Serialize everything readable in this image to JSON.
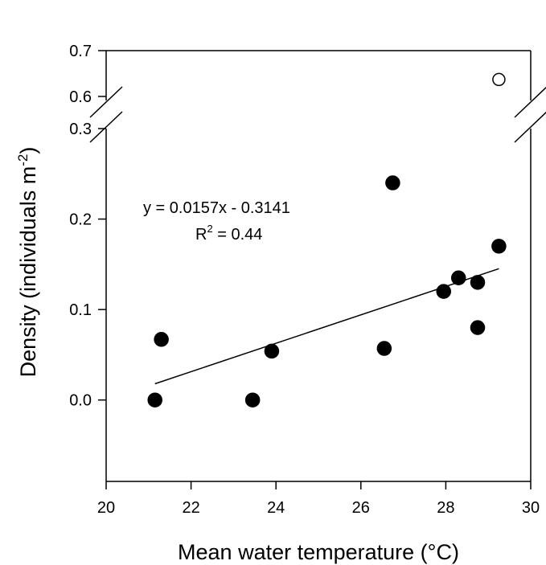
{
  "chart_data": {
    "type": "scatter",
    "title": "",
    "xlabel": "Mean water temperature (°C)",
    "ylabel_main": "Density (individuals m",
    "ylabel_sup": "-2",
    "ylabel_close": ")",
    "xlim": [
      20,
      30
    ],
    "x_ticks": [
      20,
      22,
      24,
      26,
      28,
      30
    ],
    "y_axis": {
      "broken": true,
      "lower_range": [
        -0.09,
        0.3
      ],
      "upper_range": [
        0.6,
        0.7
      ],
      "lower_ticks": [
        0.0,
        0.1,
        0.2,
        0.3
      ],
      "upper_ticks": [
        0.6,
        0.7
      ],
      "lower_tick_labels": [
        "0.0",
        "0.1",
        "0.2",
        "0.3"
      ],
      "upper_tick_labels": [
        "0.6",
        "0.7"
      ]
    },
    "grid": false,
    "series": [
      {
        "marker": "filled-circle",
        "color": "#000000",
        "points": [
          {
            "x": 21.15,
            "y": 0.0
          },
          {
            "x": 21.3,
            "y": 0.067
          },
          {
            "x": 23.45,
            "y": 0.0
          },
          {
            "x": 23.9,
            "y": 0.054
          },
          {
            "x": 26.55,
            "y": 0.057
          },
          {
            "x": 26.75,
            "y": 0.24
          },
          {
            "x": 27.95,
            "y": 0.12
          },
          {
            "x": 28.3,
            "y": 0.135
          },
          {
            "x": 28.75,
            "y": 0.08
          },
          {
            "x": 28.75,
            "y": 0.13
          },
          {
            "x": 29.25,
            "y": 0.17
          }
        ]
      },
      {
        "marker": "open-circle",
        "color": "#000000",
        "points": [
          {
            "x": 29.25,
            "y": 0.637
          }
        ]
      }
    ],
    "trendline": {
      "slope": 0.0157,
      "intercept": -0.3141,
      "x_range": [
        21.15,
        29.25
      ]
    },
    "annotations": {
      "equation": "y = 0.0157x - 0.3141",
      "r2_base": "R",
      "r2_sup": "2",
      "r2_value": " = 0.44"
    }
  }
}
